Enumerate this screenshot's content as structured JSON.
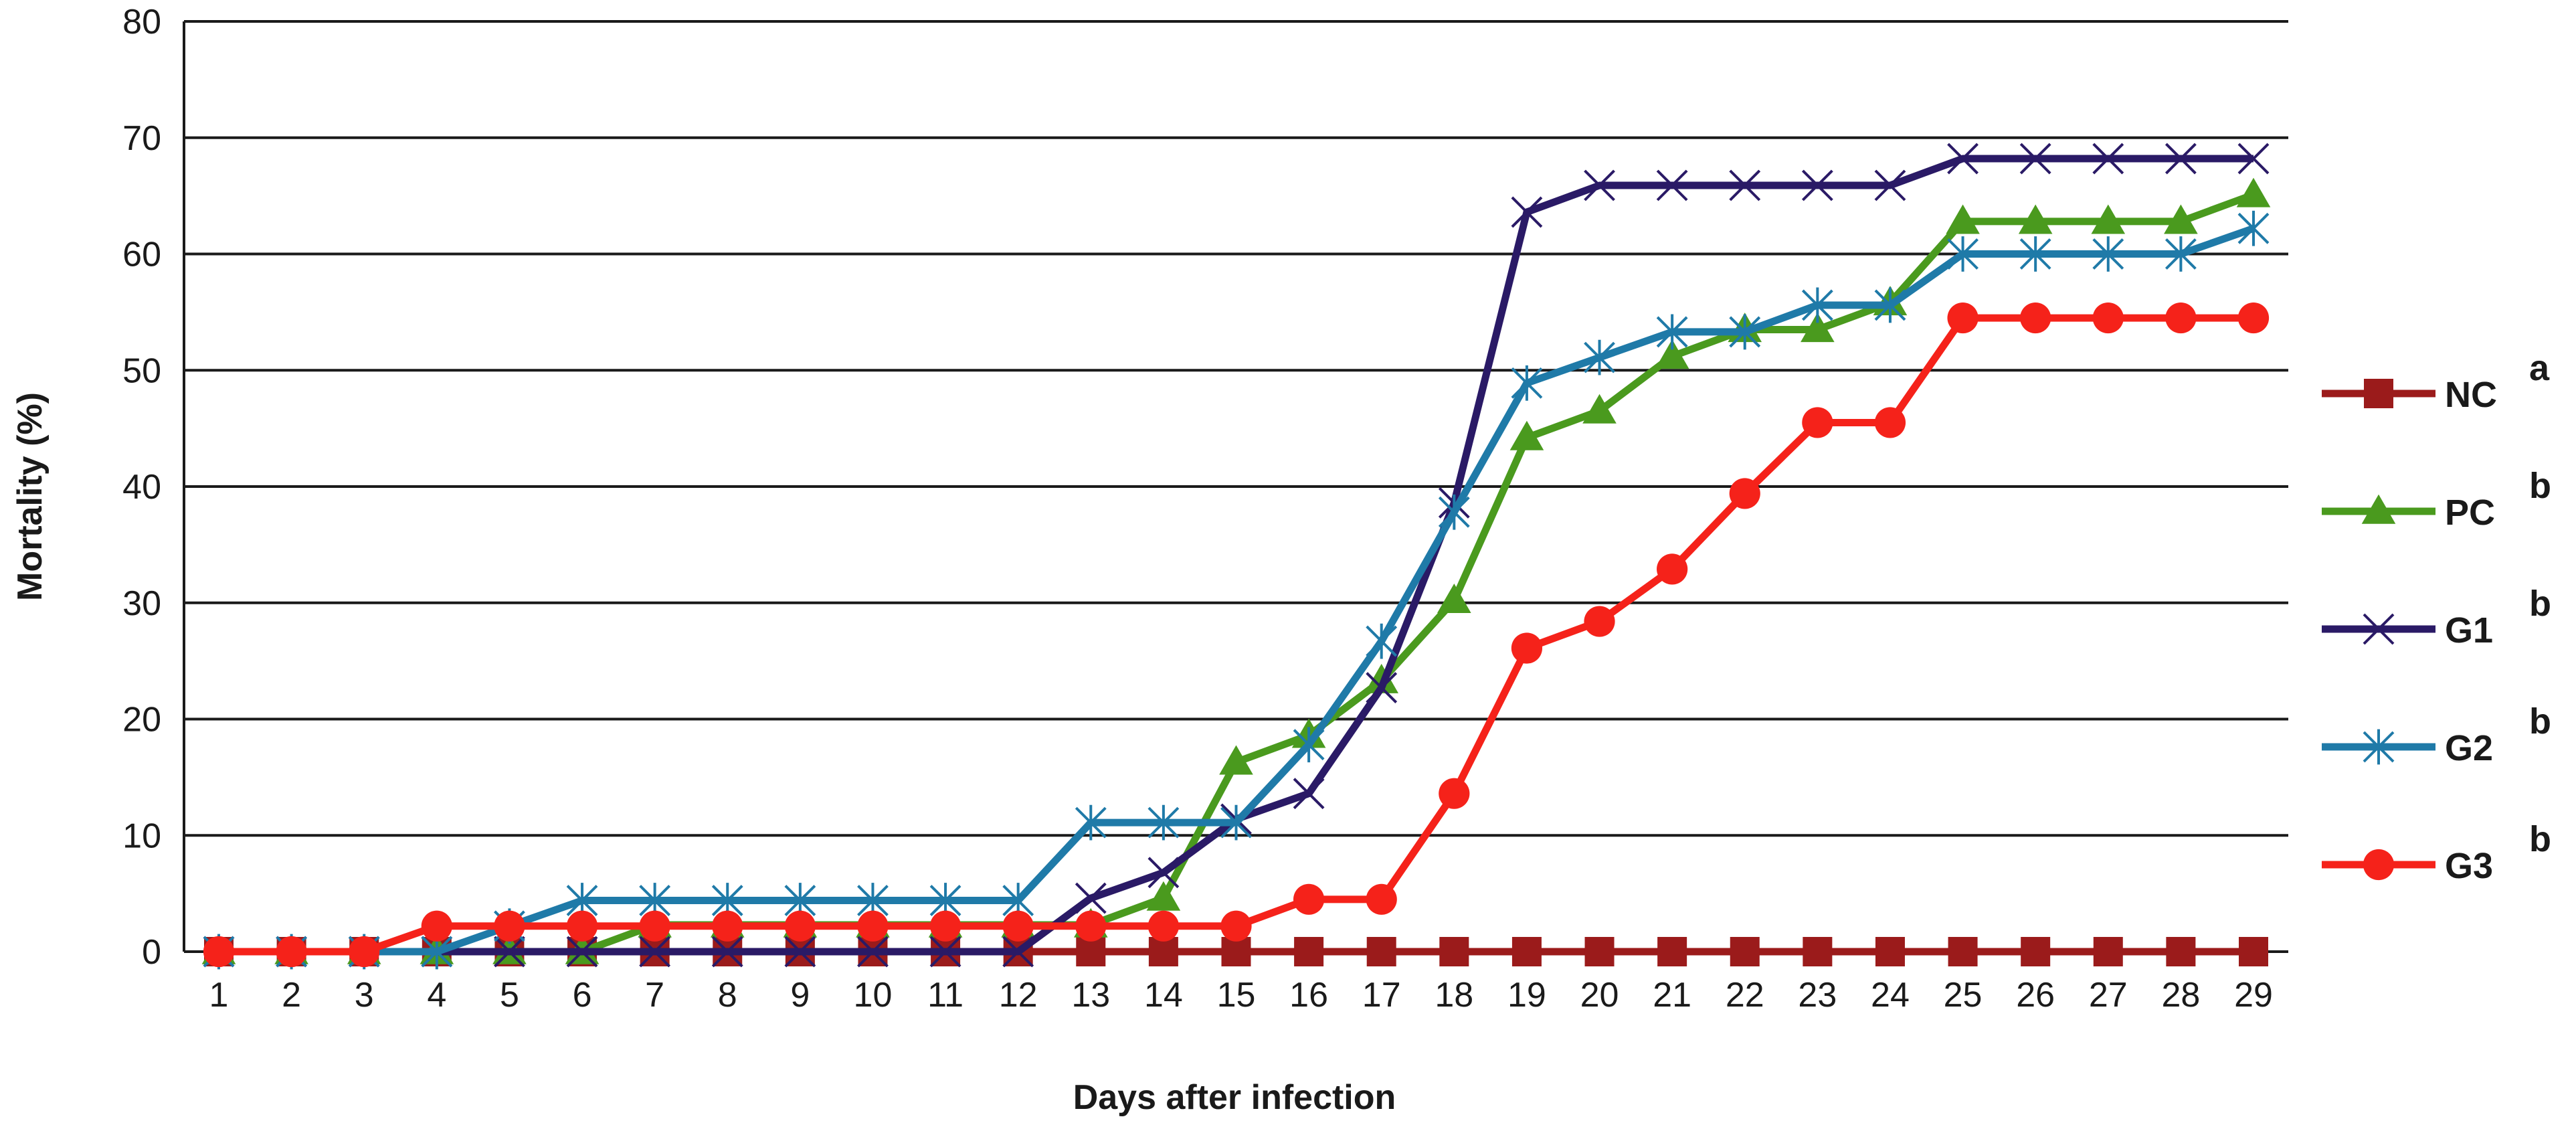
{
  "chart_data": {
    "type": "line",
    "title": "",
    "xlabel": "Days after infection",
    "ylabel": "Mortality (%)",
    "ylim": [
      0,
      80
    ],
    "yticks": [
      0,
      10,
      20,
      30,
      40,
      50,
      60,
      70,
      80
    ],
    "grid": "horizontal",
    "legend": "right",
    "x": [
      1,
      2,
      3,
      4,
      5,
      6,
      7,
      8,
      9,
      10,
      11,
      12,
      13,
      14,
      15,
      16,
      17,
      18,
      19,
      20,
      21,
      22,
      23,
      24,
      25,
      26,
      27,
      28,
      29
    ],
    "series": [
      {
        "name": "NC",
        "sup": "a",
        "color": "#9b1b1b",
        "marker": "square",
        "values": [
          0,
          0,
          0,
          0,
          0,
          0,
          0,
          0,
          0,
          0,
          0,
          0,
          0,
          0,
          0,
          0,
          0,
          0,
          0,
          0,
          0,
          0,
          0,
          0,
          0,
          0,
          0,
          0,
          0
        ]
      },
      {
        "name": "PC",
        "sup": "b",
        "color": "#4a9a1e",
        "marker": "triangle",
        "values": [
          0,
          0,
          0,
          0,
          0,
          0,
          2.3,
          2.3,
          2.3,
          2.3,
          2.3,
          2.3,
          2.3,
          4.6,
          16.3,
          18.6,
          23.3,
          30.2,
          44.2,
          46.5,
          51.2,
          53.5,
          53.5,
          55.8,
          62.8,
          62.8,
          62.8,
          62.8,
          65.1
        ]
      },
      {
        "name": "G1",
        "sup": "b",
        "color": "#2a1a66",
        "marker": "x",
        "values": [
          0,
          0,
          0,
          0,
          0,
          0,
          0,
          0,
          0,
          0,
          0,
          0,
          4.6,
          6.8,
          11.4,
          13.6,
          22.7,
          38.6,
          63.6,
          65.9,
          65.9,
          65.9,
          65.9,
          65.9,
          68.2,
          68.2,
          68.2,
          68.2,
          68.2
        ]
      },
      {
        "name": "G2",
        "sup": "b",
        "color": "#1f7aa8",
        "marker": "star",
        "values": [
          0,
          0,
          0,
          0,
          2.2,
          4.4,
          4.4,
          4.4,
          4.4,
          4.4,
          4.4,
          4.4,
          11.1,
          11.1,
          11.1,
          17.8,
          26.7,
          37.8,
          48.9,
          51.1,
          53.3,
          53.3,
          55.6,
          55.6,
          60.0,
          60.0,
          60.0,
          60.0,
          62.2
        ]
      },
      {
        "name": "G3",
        "sup": "b",
        "color": "#f5221a",
        "marker": "circle",
        "values": [
          0,
          0,
          0,
          2.2,
          2.2,
          2.2,
          2.2,
          2.2,
          2.2,
          2.2,
          2.2,
          2.2,
          2.2,
          2.2,
          2.2,
          4.5,
          4.5,
          13.6,
          26.1,
          28.4,
          32.9,
          39.4,
          45.5,
          45.5,
          54.5,
          54.5,
          54.5,
          54.5,
          54.5
        ]
      }
    ]
  }
}
